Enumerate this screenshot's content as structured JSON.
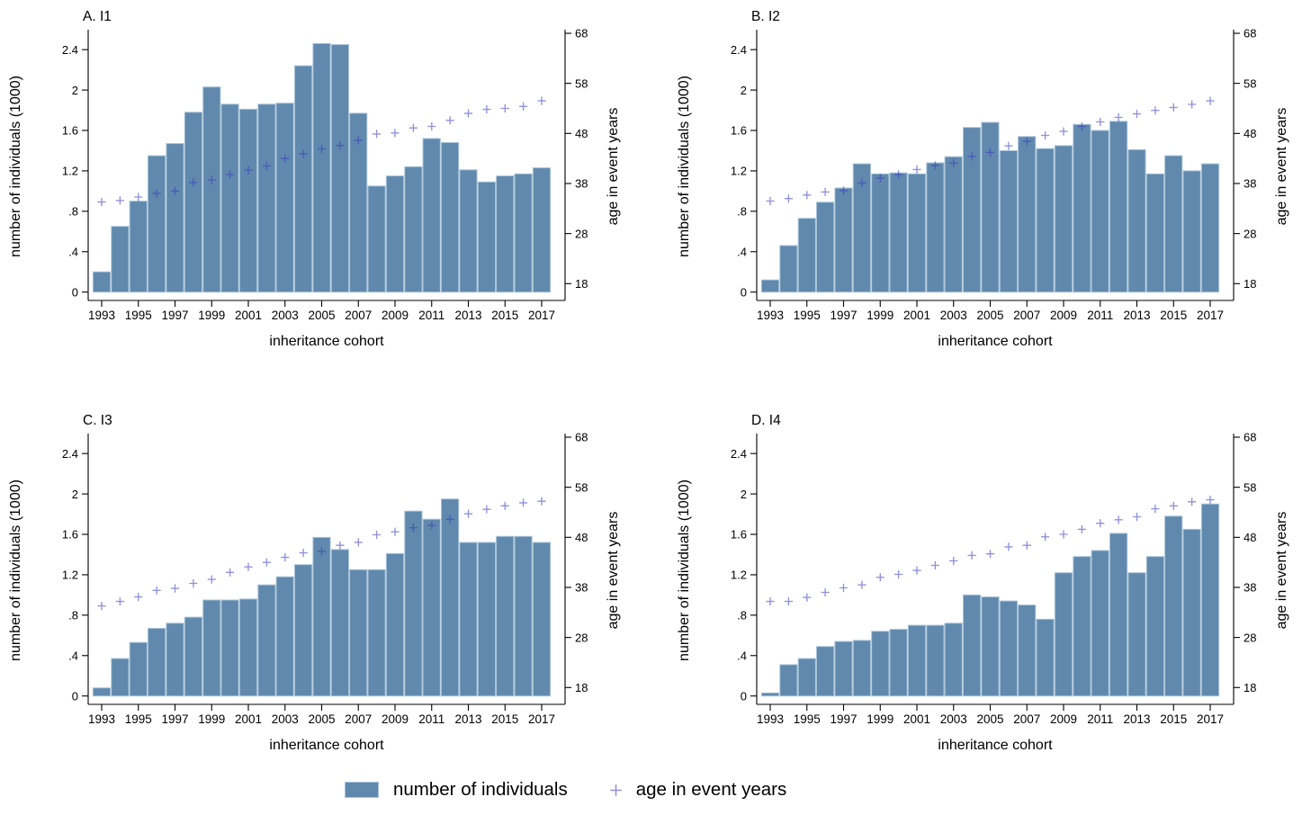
{
  "legend": {
    "bar_label": "number of individuals",
    "marker_label": "age in event years",
    "marker_symbol": "+"
  },
  "colors": {
    "bar_fill": "#6089ad",
    "bar_stroke": "#a8c3d8",
    "marker": "rgba(55,55,190,0.55)",
    "axis": "#000000",
    "text": "#000000"
  },
  "axes": {
    "x_title": "inheritance cohort",
    "left_title": "number of individuals (1000)",
    "right_title": "age in event years",
    "left_ticks": [
      0,
      0.4,
      0.8,
      1.2,
      1.6,
      2,
      2.4
    ],
    "left_tick_labels": [
      "0",
      ".4",
      ".8",
      "1.2",
      "1.6",
      "2",
      "2.4"
    ],
    "right_ticks": [
      18,
      28,
      38,
      48,
      58,
      68
    ],
    "right_tick_labels": [
      "18",
      "28",
      "38",
      "48",
      "58",
      "68"
    ],
    "x_tick_labels": [
      "1993",
      "1995",
      "1997",
      "1999",
      "2001",
      "2003",
      "2005",
      "2007",
      "2009",
      "2011",
      "2013",
      "2015",
      "2017"
    ],
    "left_range": [
      0,
      2.4
    ],
    "right_range": [
      18,
      68
    ]
  },
  "chart_data": [
    {
      "type": "bar",
      "title": "A. I1",
      "xlabel": "inheritance cohort",
      "ylabel_left": "number of individuals (1000)",
      "ylabel_right": "age in event years",
      "ylim_left": [
        0,
        2.4
      ],
      "ylim_right": [
        18,
        68
      ],
      "categories": [
        1993,
        1994,
        1995,
        1996,
        1997,
        1998,
        1999,
        2000,
        2001,
        2002,
        2003,
        2004,
        2005,
        2006,
        2007,
        2008,
        2009,
        2010,
        2011,
        2012,
        2013,
        2014,
        2015,
        2016,
        2017
      ],
      "series": [
        {
          "name": "number of individuals",
          "type": "bar",
          "axis": "left",
          "values": [
            0.2,
            0.65,
            0.9,
            1.35,
            1.47,
            1.78,
            2.03,
            1.86,
            1.81,
            1.86,
            1.87,
            2.24,
            2.46,
            2.45,
            1.77,
            1.05,
            1.15,
            1.24,
            1.52,
            1.48,
            1.21,
            1.09,
            1.15,
            1.17,
            1.23
          ]
        },
        {
          "name": "age in event years",
          "type": "scatter",
          "marker": "plus",
          "axis": "right",
          "values": [
            34.3,
            34.6,
            35.3,
            36.0,
            36.5,
            38.2,
            38.7,
            39.8,
            40.7,
            41.5,
            43.0,
            43.9,
            44.9,
            45.6,
            46.6,
            47.9,
            48.1,
            49.1,
            49.4,
            50.6,
            52.0,
            52.8,
            53.0,
            53.4,
            54.5
          ]
        }
      ]
    },
    {
      "type": "bar",
      "title": "B. I2",
      "xlabel": "inheritance cohort",
      "ylabel_left": "number of individuals (1000)",
      "ylabel_right": "age in event years",
      "ylim_left": [
        0,
        2.4
      ],
      "ylim_right": [
        18,
        68
      ],
      "categories": [
        1993,
        1994,
        1995,
        1996,
        1997,
        1998,
        1999,
        2000,
        2001,
        2002,
        2003,
        2004,
        2005,
        2006,
        2007,
        2008,
        2009,
        2010,
        2011,
        2012,
        2013,
        2014,
        2015,
        2016,
        2017
      ],
      "series": [
        {
          "name": "number of individuals",
          "type": "bar",
          "axis": "left",
          "values": [
            0.12,
            0.46,
            0.73,
            0.89,
            1.03,
            1.27,
            1.17,
            1.18,
            1.17,
            1.28,
            1.34,
            1.63,
            1.68,
            1.4,
            1.54,
            1.42,
            1.45,
            1.66,
            1.6,
            1.69,
            1.41,
            1.17,
            1.35,
            1.2,
            1.27
          ]
        },
        {
          "name": "age in event years",
          "type": "scatter",
          "marker": "plus",
          "axis": "right",
          "values": [
            34.5,
            35.0,
            35.7,
            36.3,
            36.6,
            38.1,
            39.1,
            39.8,
            40.8,
            41.6,
            42.1,
            43.4,
            44.2,
            45.5,
            46.4,
            47.6,
            48.4,
            49.4,
            50.3,
            51.2,
            51.9,
            52.6,
            53.2,
            53.8,
            54.5
          ]
        }
      ]
    },
    {
      "type": "bar",
      "title": "C. I3",
      "xlabel": "inheritance cohort",
      "ylabel_left": "number of individuals (1000)",
      "ylabel_right": "age in event years",
      "ylim_left": [
        0,
        2.4
      ],
      "ylim_right": [
        18,
        68
      ],
      "categories": [
        1993,
        1994,
        1995,
        1996,
        1997,
        1998,
        1999,
        2000,
        2001,
        2002,
        2003,
        2004,
        2005,
        2006,
        2007,
        2008,
        2009,
        2010,
        2011,
        2012,
        2013,
        2014,
        2015,
        2016,
        2017
      ],
      "series": [
        {
          "name": "number of individuals",
          "type": "bar",
          "axis": "left",
          "values": [
            0.08,
            0.37,
            0.53,
            0.67,
            0.72,
            0.78,
            0.95,
            0.95,
            0.96,
            1.1,
            1.18,
            1.3,
            1.57,
            1.45,
            1.25,
            1.25,
            1.41,
            1.83,
            1.75,
            1.95,
            1.52,
            1.52,
            1.58,
            1.58,
            1.52
          ]
        },
        {
          "name": "age in event years",
          "type": "scatter",
          "marker": "plus",
          "axis": "right",
          "values": [
            34.3,
            35.2,
            36.1,
            37.4,
            37.8,
            38.8,
            39.6,
            41.0,
            42.1,
            43.0,
            44.0,
            44.9,
            45.2,
            46.4,
            47.0,
            48.5,
            49.1,
            49.9,
            50.4,
            51.6,
            52.7,
            53.6,
            54.3,
            54.9,
            55.2
          ]
        }
      ]
    },
    {
      "type": "bar",
      "title": "D. I4",
      "xlabel": "inheritance cohort",
      "ylabel_left": "number of individuals (1000)",
      "ylabel_right": "age in event years",
      "ylim_left": [
        0,
        2.4
      ],
      "ylim_right": [
        18,
        68
      ],
      "categories": [
        1993,
        1994,
        1995,
        1996,
        1997,
        1998,
        1999,
        2000,
        2001,
        2002,
        2003,
        2004,
        2005,
        2006,
        2007,
        2008,
        2009,
        2010,
        2011,
        2012,
        2013,
        2014,
        2015,
        2016,
        2017
      ],
      "series": [
        {
          "name": "number of individuals",
          "type": "bar",
          "axis": "left",
          "values": [
            0.03,
            0.31,
            0.37,
            0.49,
            0.54,
            0.55,
            0.64,
            0.66,
            0.7,
            0.7,
            0.72,
            1.0,
            0.98,
            0.94,
            0.9,
            0.76,
            1.22,
            1.38,
            1.44,
            1.61,
            1.22,
            1.38,
            1.78,
            1.65,
            1.9
          ]
        },
        {
          "name": "age in event years",
          "type": "scatter",
          "marker": "plus",
          "axis": "right",
          "values": [
            35.2,
            35.2,
            36.0,
            37.0,
            37.9,
            38.5,
            40.0,
            40.6,
            41.4,
            42.4,
            43.3,
            44.4,
            44.7,
            46.1,
            46.4,
            48.1,
            48.6,
            49.6,
            50.8,
            51.5,
            52.1,
            53.7,
            54.3,
            55.1,
            55.5
          ]
        }
      ]
    }
  ]
}
